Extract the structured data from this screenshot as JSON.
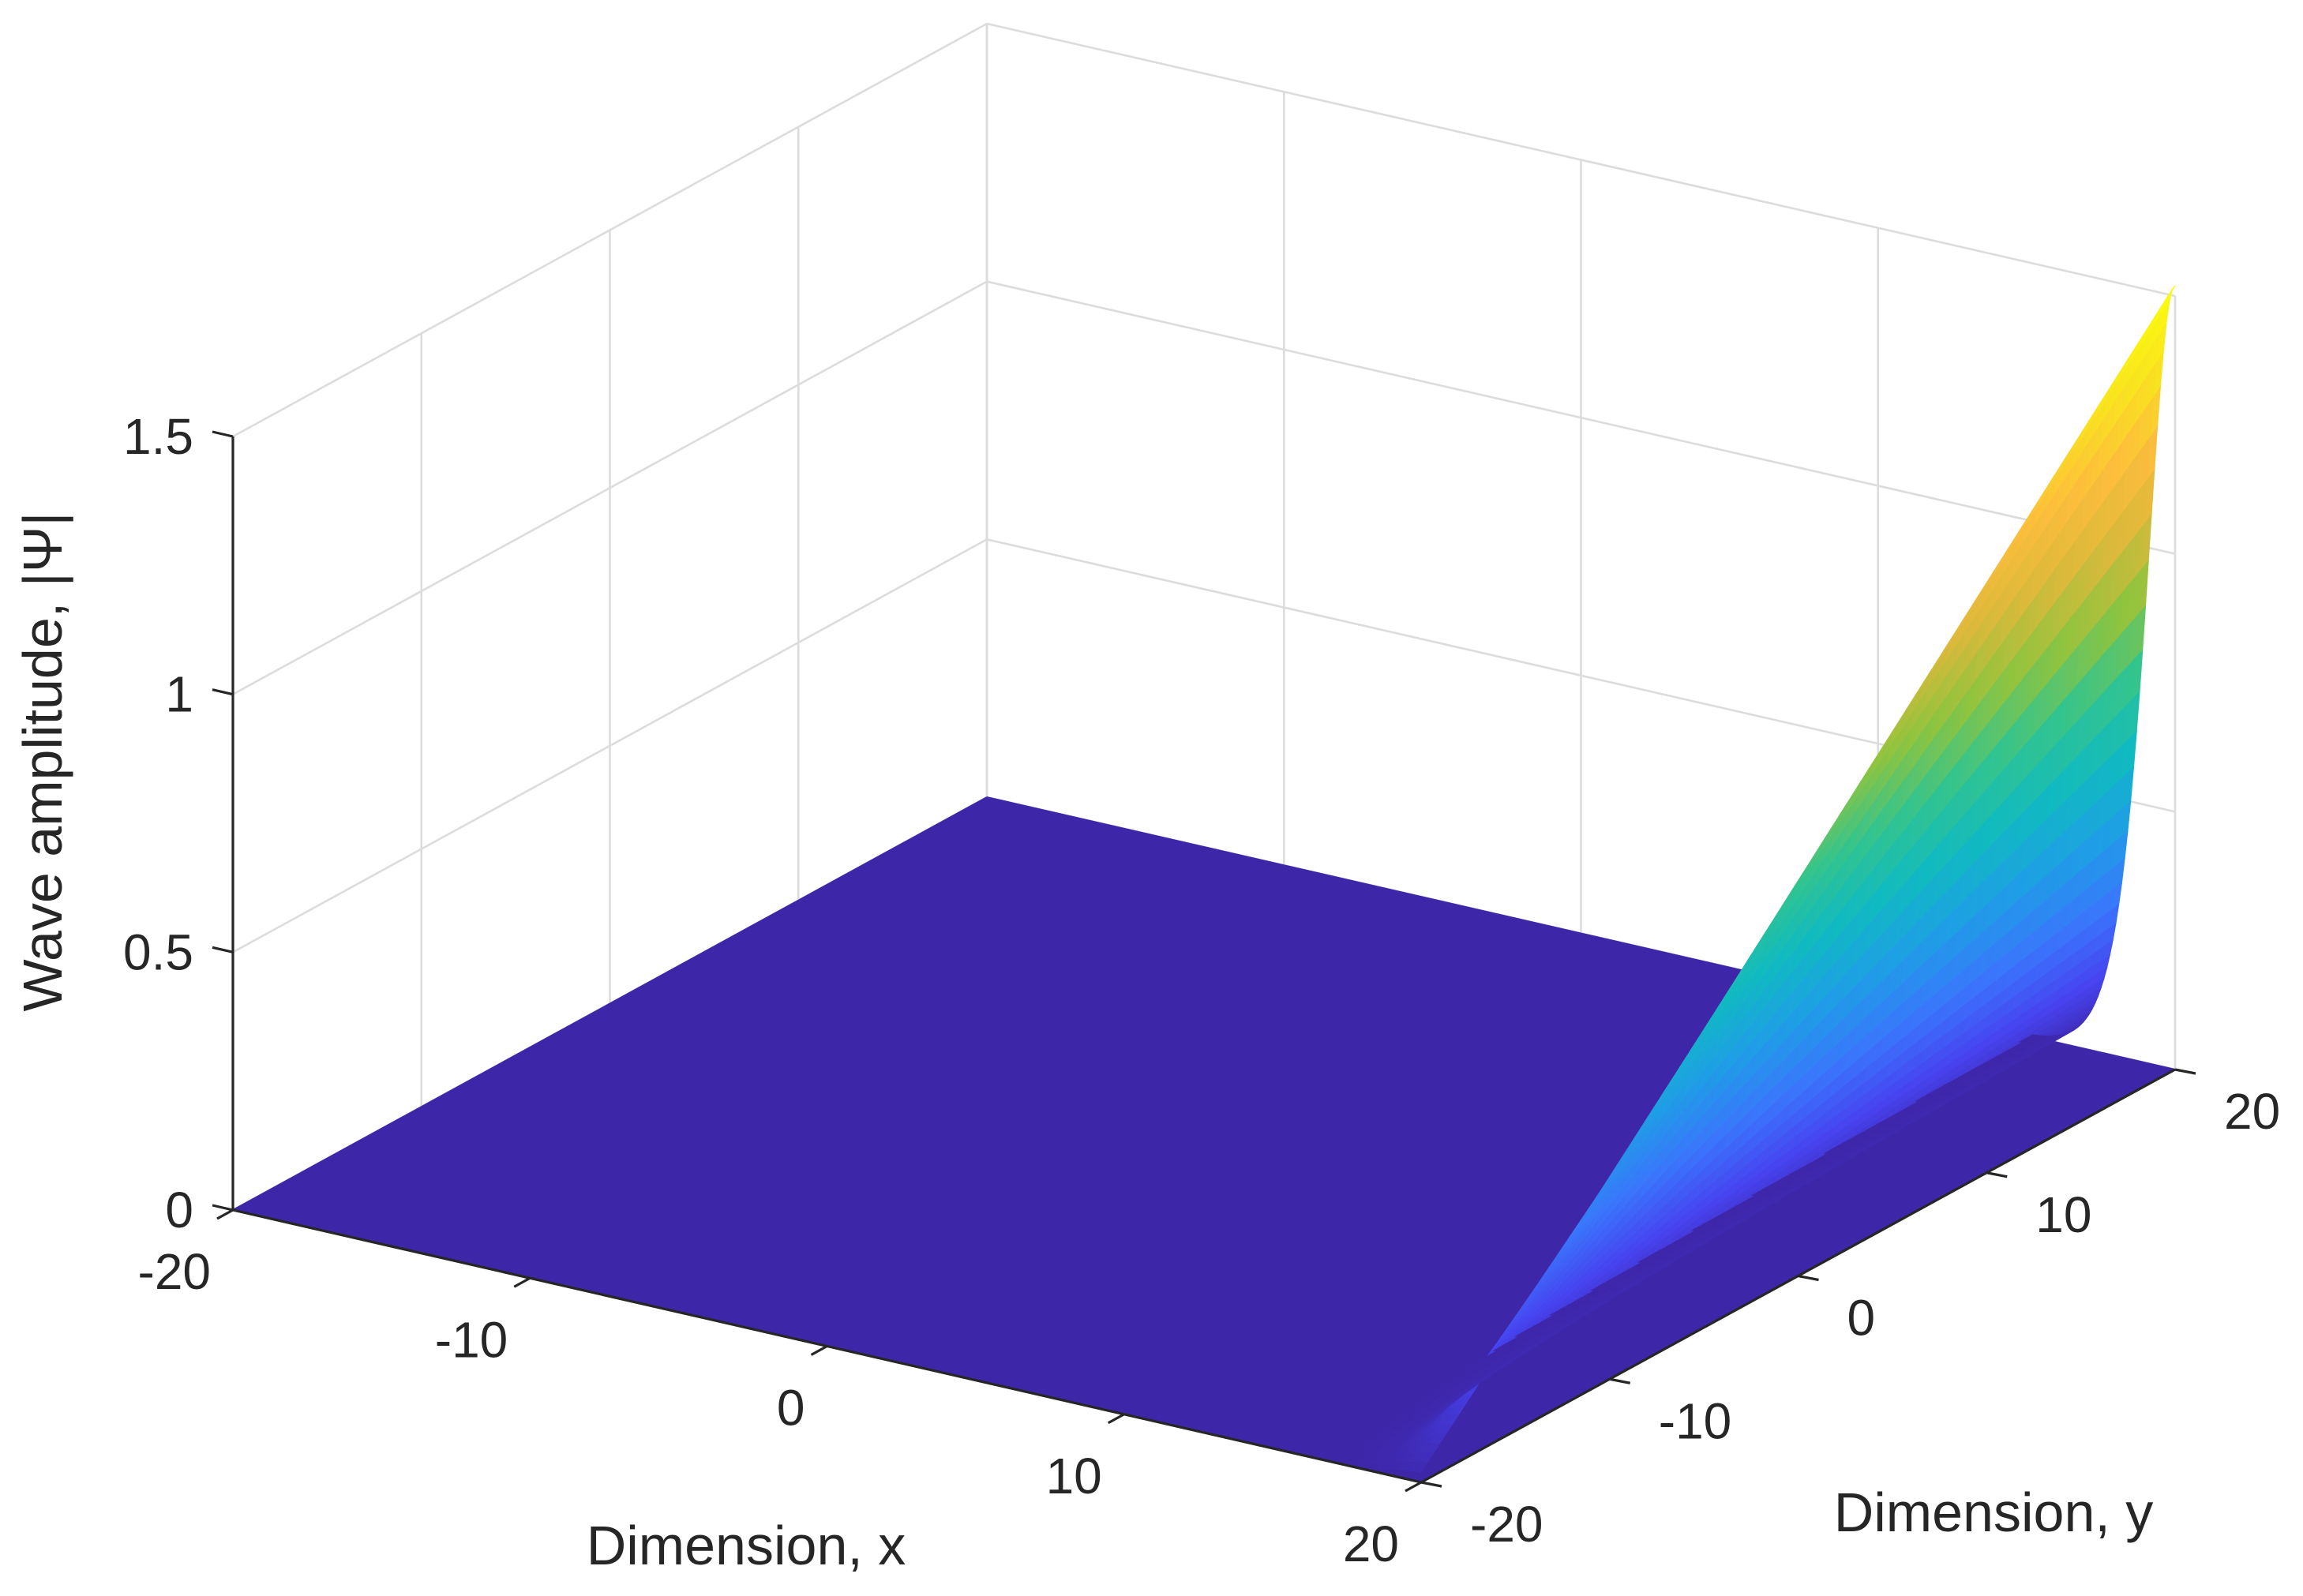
{
  "chart_data": {
    "type": "surface",
    "title": "",
    "xlabel": "Dimension, x",
    "ylabel": "Dimension, y",
    "zlabel": "Wave amplitude, |Ψ|",
    "xlim": [
      -20,
      20
    ],
    "ylim": [
      -20,
      20
    ],
    "zlim": [
      0,
      1.5
    ],
    "xticks": [
      -20,
      -10,
      0,
      10,
      20
    ],
    "yticks": [
      -20,
      -10,
      0,
      10,
      20
    ],
    "zticks": [
      0,
      0.5,
      1,
      1.5
    ],
    "xtick_labels": [
      "-20",
      "-10",
      "0",
      "10",
      "20"
    ],
    "ytick_labels": [
      "-20",
      "-10",
      "0",
      "10",
      "20"
    ],
    "ztick_labels": [
      "0",
      "0.5",
      "1",
      "1.5"
    ],
    "grid": true,
    "colormap": "parula",
    "colormap_colors": [
      "#3e26a8",
      "#4743f0",
      "#3a76fc",
      "#1f9ee6",
      "#10bac1",
      "#33c48e",
      "#8fc43e",
      "#dbb93b",
      "#fdbd3c",
      "#f9e31f",
      "#f9fb0e"
    ],
    "surface": {
      "description": "line soliton ridge along x = 20 (full y range), amplitude rising with y",
      "ridge_x": 20,
      "ridge_width": 1.3,
      "base_level": 0,
      "ridge_height_at_y": {
        "y": [
          -20,
          -10,
          0,
          10,
          20
        ],
        "z": [
          0.02,
          0.38,
          0.76,
          1.14,
          1.52
        ]
      }
    }
  }
}
